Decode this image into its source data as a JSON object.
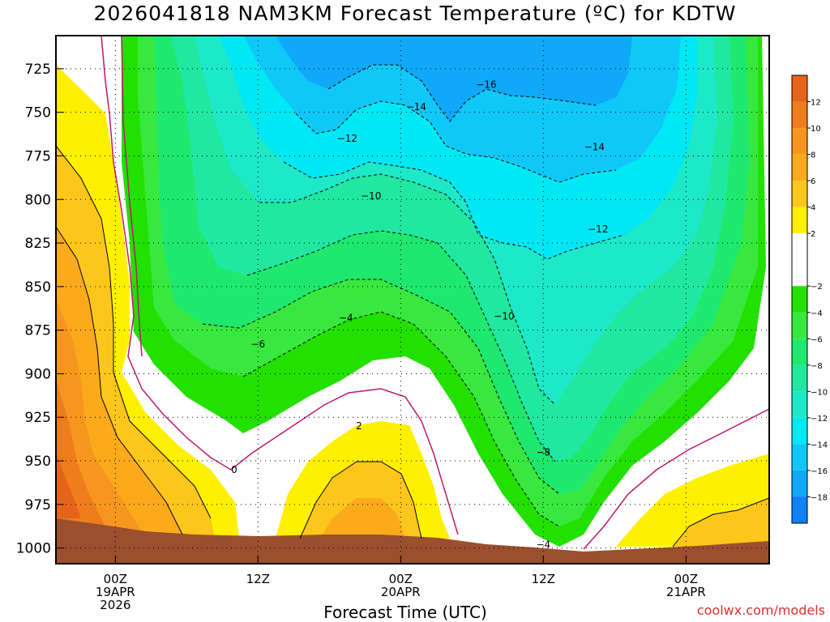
{
  "title": "2026041818 NAM3KM Forecast Temperature (ºC) for KDTW",
  "xlabel": "Forecast Time (UTC)",
  "credit": "coolwx.com/models",
  "chart_data": {
    "type": "heatmap",
    "title": "2026041818 NAM3KM Forecast Temperature (ºC) for KDTW",
    "xlabel": "Forecast Time (UTC)",
    "ylabel": "",
    "y_axis": {
      "reversed": true,
      "ticks": [
        725,
        750,
        775,
        800,
        825,
        850,
        875,
        900,
        925,
        950,
        975,
        1000
      ],
      "range": [
        706,
        1009
      ]
    },
    "x_axis": {
      "range_hours": [
        -5,
        55
      ],
      "ticks": [
        {
          "hour": 0,
          "lines": [
            "00Z",
            "19APR",
            "2026"
          ]
        },
        {
          "hour": 12,
          "lines": [
            "12Z"
          ]
        },
        {
          "hour": 24,
          "lines": [
            "00Z",
            "20APR"
          ]
        },
        {
          "hour": 36,
          "lines": [
            "12Z"
          ]
        },
        {
          "hour": 48,
          "lines": [
            "00Z",
            "21APR"
          ]
        }
      ]
    },
    "grid": true,
    "colorbar": {
      "ticks": [
        "12",
        "10",
        "8",
        "6",
        "4",
        "2",
        "-2",
        "-4",
        "-6",
        "-8",
        "-10",
        "-12",
        "-14",
        "-16",
        "-18"
      ],
      "bands": [
        {
          "from": 12,
          "to": 14,
          "color": "#e8631a"
        },
        {
          "from": 10,
          "to": 12,
          "color": "#f07d1c"
        },
        {
          "from": 8,
          "to": 10,
          "color": "#f7961e"
        },
        {
          "from": 6,
          "to": 8,
          "color": "#fbaa1c"
        },
        {
          "from": 4,
          "to": 6,
          "color": "#fdc61a"
        },
        {
          "from": 2,
          "to": 4,
          "color": "#fff000"
        },
        {
          "from": -2,
          "to": 2,
          "color": "#ffffff"
        },
        {
          "from": -4,
          "to": -2,
          "color": "#22e000"
        },
        {
          "from": -6,
          "to": -4,
          "color": "#38e83e"
        },
        {
          "from": -8,
          "to": -6,
          "color": "#1fe86e"
        },
        {
          "from": -10,
          "to": -8,
          "color": "#20e8a0"
        },
        {
          "from": -12,
          "to": -10,
          "color": "#1de8c8"
        },
        {
          "from": -14,
          "to": -12,
          "color": "#00e8f4"
        },
        {
          "from": -16,
          "to": -14,
          "color": "#10c8f8"
        },
        {
          "from": -18,
          "to": -16,
          "color": "#10a8f8"
        },
        {
          "from": -20,
          "to": -18,
          "color": "#1080f8"
        }
      ]
    },
    "contour_labels": [
      {
        "value": -16,
        "hour": 31.2,
        "p": 734
      },
      {
        "value": -14,
        "hour": 25.3,
        "p": 747
      },
      {
        "value": -14,
        "hour": 40.3,
        "p": 770
      },
      {
        "value": -12,
        "hour": 19.5,
        "p": 765
      },
      {
        "value": -12,
        "hour": 40.6,
        "p": 817
      },
      {
        "value": -10,
        "hour": 21.5,
        "p": 798
      },
      {
        "value": -10,
        "hour": 32.7,
        "p": 867
      },
      {
        "value": -8,
        "hour": 36.0,
        "p": 945
      },
      {
        "value": -6,
        "hour": 12.0,
        "p": 883
      },
      {
        "value": -4,
        "hour": 19.4,
        "p": 868
      },
      {
        "value": -4,
        "hour": 36.0,
        "p": 998
      },
      {
        "value": 0,
        "hour": 10.0,
        "p": 955
      },
      {
        "value": 2,
        "hour": 20.5,
        "p": 930
      }
    ],
    "ground": {
      "color": "#9b4f2f"
    }
  }
}
